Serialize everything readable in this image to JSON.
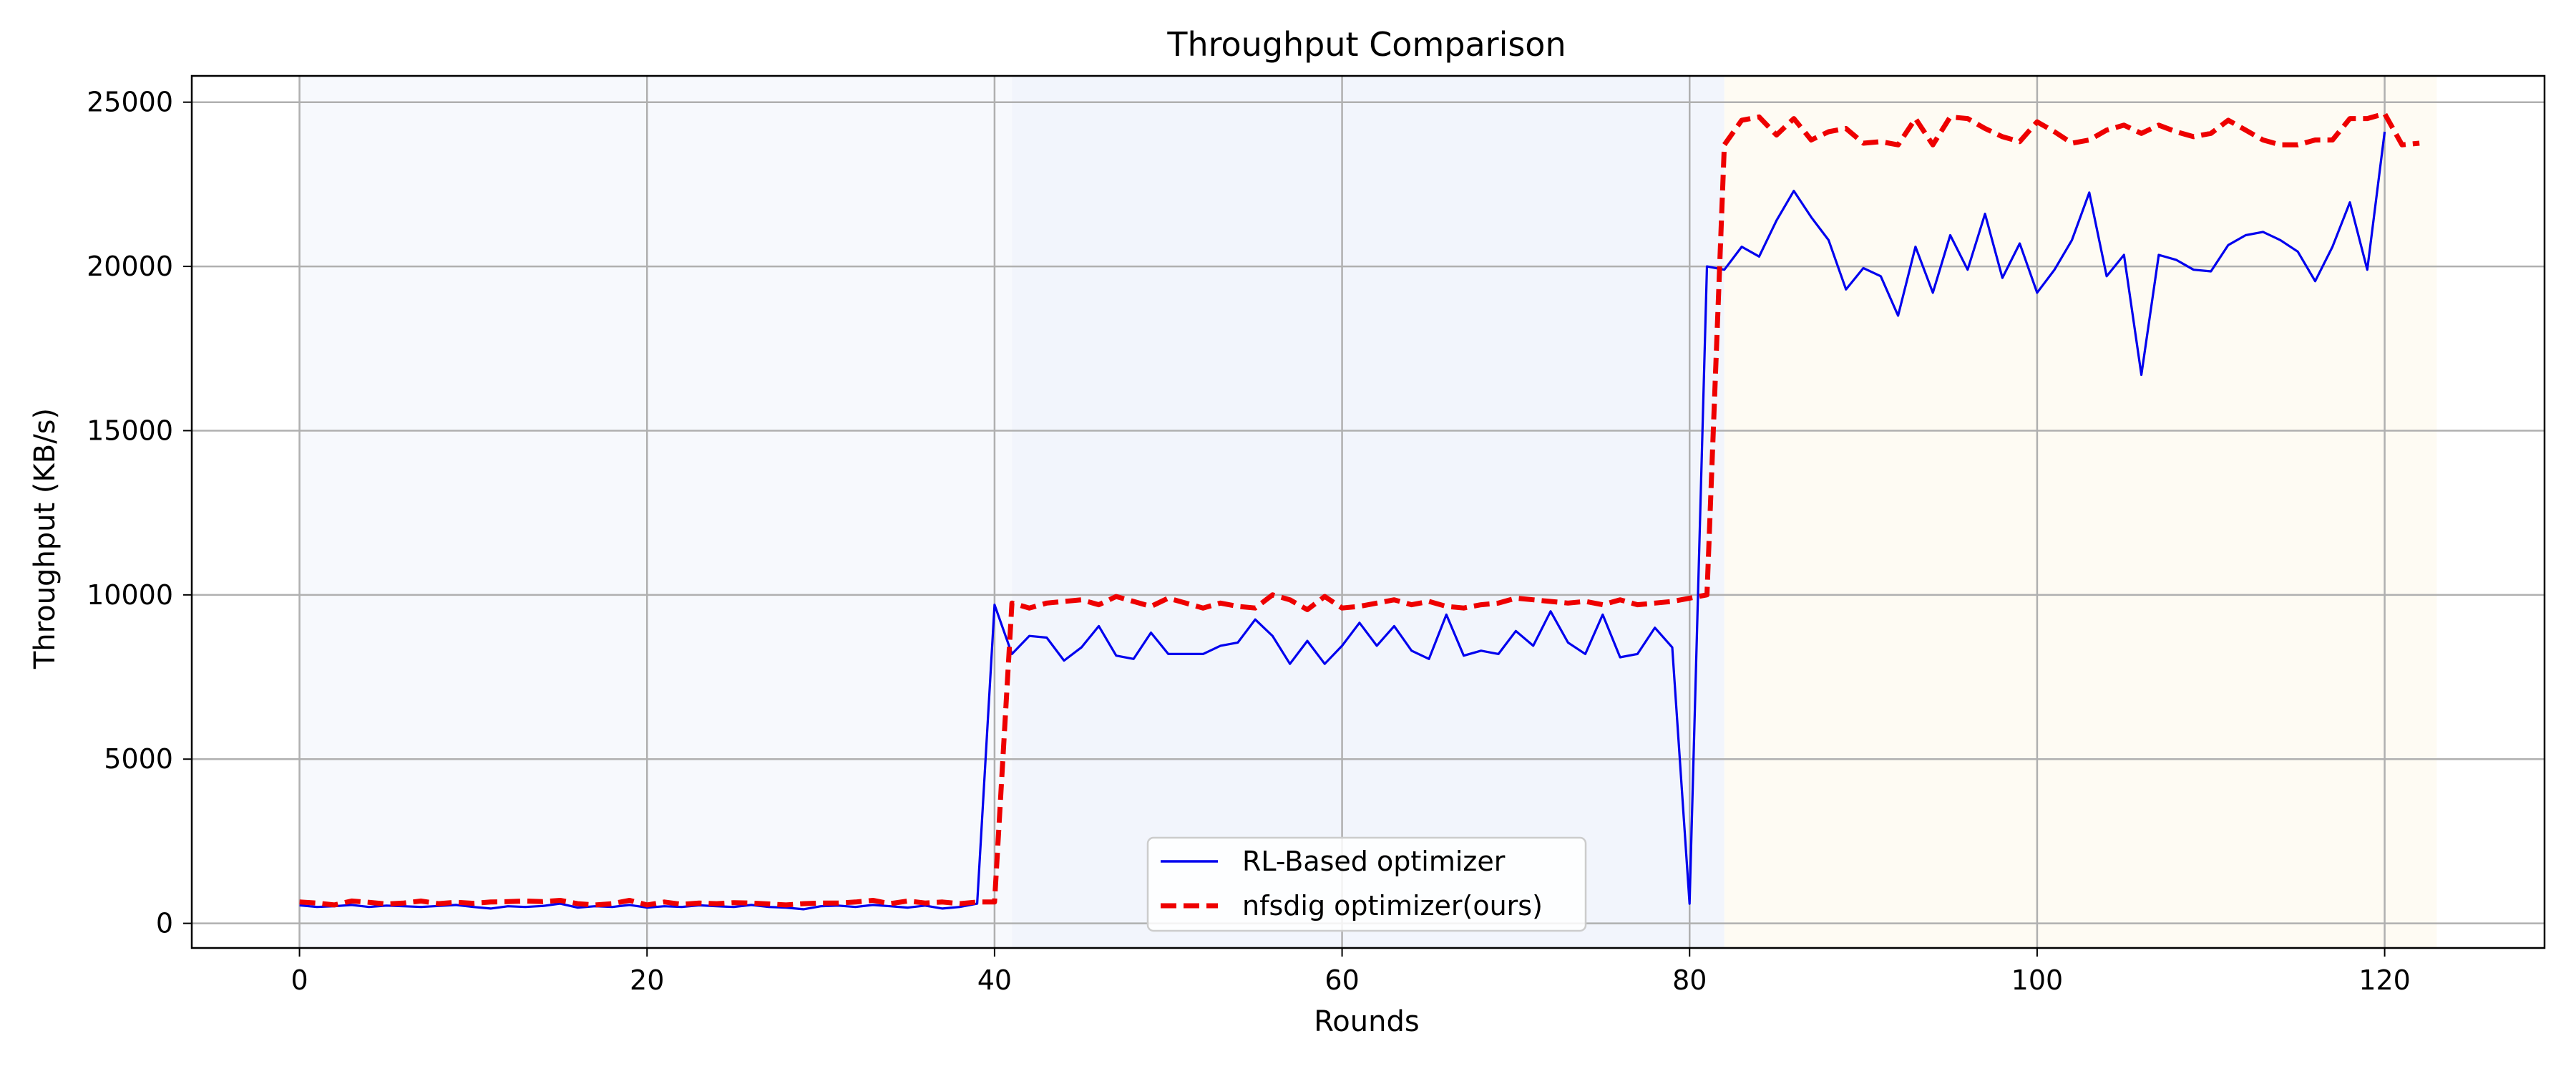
{
  "chart_data": {
    "type": "line",
    "title": "Throughput Comparison",
    "xlabel": "Rounds",
    "ylabel": "Throughput (KB/s)",
    "xlim": [
      -6.2,
      129.2
    ],
    "ylim": [
      -750,
      25800
    ],
    "xticks": [
      "0",
      "20",
      "40",
      "60",
      "80",
      "100",
      "120"
    ],
    "yticks": [
      "0",
      "5000",
      "10000",
      "15000",
      "20000",
      "25000"
    ],
    "grid": true,
    "legend_position": "bottom-center",
    "background_regions": [
      {
        "x0": 0,
        "x1": 41,
        "color": "#f7f9fd"
      },
      {
        "x0": 41,
        "x1": 82,
        "color": "#f2f5fc"
      },
      {
        "x0": 82,
        "x1": 123,
        "color": "#fefbf3"
      }
    ],
    "series": [
      {
        "name": "RL-Based optimizer",
        "color": "#0000ee",
        "style": "solid",
        "x": [
          0,
          1,
          2,
          3,
          4,
          5,
          6,
          7,
          8,
          9,
          10,
          11,
          12,
          13,
          14,
          15,
          16,
          17,
          18,
          19,
          20,
          21,
          22,
          23,
          24,
          25,
          26,
          27,
          28,
          29,
          30,
          31,
          32,
          33,
          34,
          35,
          36,
          37,
          38,
          39,
          40,
          41,
          42,
          43,
          44,
          45,
          46,
          47,
          48,
          49,
          50,
          51,
          52,
          53,
          54,
          55,
          56,
          57,
          58,
          59,
          60,
          61,
          62,
          63,
          64,
          65,
          66,
          67,
          68,
          69,
          70,
          71,
          72,
          73,
          74,
          75,
          76,
          77,
          78,
          79,
          80,
          81,
          82,
          83,
          84,
          85,
          86,
          87,
          88,
          89,
          90,
          91,
          92,
          93,
          94,
          95,
          96,
          97,
          98,
          99,
          100,
          101,
          102,
          103,
          104,
          105,
          106,
          107,
          108,
          109,
          110,
          111,
          112,
          113,
          114,
          115,
          116,
          117,
          118,
          119,
          120
        ],
        "values": [
          550,
          500,
          520,
          560,
          500,
          540,
          520,
          500,
          530,
          560,
          500,
          450,
          520,
          500,
          530,
          600,
          480,
          520,
          500,
          560,
          480,
          520,
          500,
          550,
          520,
          500,
          560,
          500,
          480,
          430,
          520,
          540,
          500,
          560,
          520,
          480,
          540,
          450,
          500,
          600,
          9700,
          8200,
          8750,
          8700,
          8000,
          8400,
          9050,
          8150,
          8050,
          8850,
          8200,
          8200,
          8200,
          8450,
          8550,
          9250,
          8750,
          7900,
          8600,
          7900,
          8450,
          9150,
          8450,
          9050,
          8300,
          8050,
          9400,
          8150,
          8300,
          8200,
          8900,
          8450,
          9500,
          8550,
          8200,
          9400,
          8100,
          8200,
          9000,
          8400,
          600,
          20000,
          19900,
          20600,
          20300,
          21400,
          22300,
          21500,
          20800,
          19300,
          19950,
          19700,
          18500,
          20600,
          19200,
          20950,
          19900,
          21600,
          19650,
          20700,
          19200,
          19900,
          20800,
          22250,
          19700,
          20350,
          16700,
          20350,
          20200,
          19900,
          19850,
          20650,
          20950,
          21050,
          20800,
          20450,
          19550,
          20600,
          21950,
          19900,
          24100
        ]
      },
      {
        "name": "nfsdig optimizer(ours)",
        "color": "#ee0000",
        "style": "dashed",
        "x": [
          0,
          1,
          2,
          3,
          4,
          5,
          6,
          7,
          8,
          9,
          10,
          11,
          12,
          13,
          14,
          15,
          16,
          17,
          18,
          19,
          20,
          21,
          22,
          23,
          24,
          25,
          26,
          27,
          28,
          29,
          30,
          31,
          32,
          33,
          34,
          35,
          36,
          37,
          38,
          39,
          40,
          41,
          42,
          43,
          44,
          45,
          46,
          47,
          48,
          49,
          50,
          51,
          52,
          53,
          54,
          55,
          56,
          57,
          58,
          59,
          60,
          61,
          62,
          63,
          64,
          65,
          66,
          67,
          68,
          69,
          70,
          71,
          72,
          73,
          74,
          75,
          76,
          77,
          78,
          79,
          80,
          81,
          82,
          83,
          84,
          85,
          86,
          87,
          88,
          89,
          90,
          91,
          92,
          93,
          94,
          95,
          96,
          97,
          98,
          99,
          100,
          101,
          102,
          103,
          104,
          105,
          106,
          107,
          108,
          109,
          110,
          111,
          112,
          113,
          114,
          115,
          116,
          117,
          118,
          119,
          120,
          121,
          122
        ],
        "values": [
          650,
          620,
          560,
          680,
          640,
          590,
          620,
          680,
          600,
          640,
          610,
          650,
          660,
          680,
          660,
          700,
          600,
          560,
          600,
          700,
          560,
          650,
          580,
          620,
          600,
          630,
          620,
          590,
          560,
          600,
          620,
          620,
          650,
          700,
          600,
          680,
          620,
          650,
          600,
          650,
          650,
          9750,
          9600,
          9750,
          9800,
          9850,
          9700,
          9950,
          9800,
          9650,
          9900,
          9750,
          9600,
          9750,
          9650,
          9600,
          10000,
          9850,
          9550,
          9950,
          9600,
          9650,
          9750,
          9850,
          9700,
          9800,
          9650,
          9600,
          9700,
          9750,
          9900,
          9850,
          9800,
          9750,
          9800,
          9700,
          9850,
          9700,
          9750,
          9800,
          9900,
          10000,
          23700,
          24450,
          24550,
          24000,
          24500,
          23850,
          24100,
          24200,
          23750,
          23800,
          23700,
          24500,
          23700,
          24550,
          24500,
          24200,
          23950,
          23800,
          24400,
          24100,
          23750,
          23850,
          24150,
          24300,
          24050,
          24300,
          24100,
          23950,
          24050,
          24450,
          24150,
          23850,
          23700,
          23700,
          23850,
          23850,
          24500,
          24500,
          24650,
          23700,
          23750
        ]
      }
    ]
  }
}
